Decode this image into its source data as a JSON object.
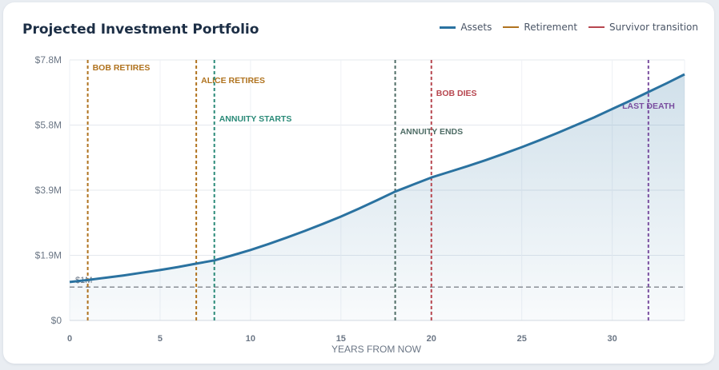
{
  "chart_data": {
    "type": "area",
    "title": "Projected Investment Portfolio",
    "xlabel": "YEARS FROM NOW",
    "ylabel": "",
    "xlim": [
      0,
      34
    ],
    "ylim": [
      0,
      7.8
    ],
    "x_ticks": [
      0,
      5,
      10,
      15,
      20,
      25,
      30
    ],
    "x_tick_labels": [
      "0",
      "5",
      "10",
      "15",
      "20",
      "25",
      "30"
    ],
    "y_ticks": [
      0,
      1.95,
      3.9,
      5.85,
      7.8
    ],
    "y_tick_labels": [
      "$0",
      "$1.9M",
      "$3.9M",
      "$5.8M",
      "$7.8M"
    ],
    "grid": true,
    "legend_position": "top-right",
    "legend": [
      {
        "label": "Assets",
        "color": "#2a72a0",
        "kind": "line"
      },
      {
        "label": "Retirement",
        "color": "#b0731f",
        "kind": "thin"
      },
      {
        "label": "Survivor transition",
        "color": "#b7464f",
        "kind": "thin"
      }
    ],
    "series": [
      {
        "name": "Assets",
        "color": "#2a72a0",
        "x": [
          0,
          1,
          2,
          3,
          4,
          5,
          6,
          7,
          8,
          9,
          10,
          11,
          12,
          13,
          14,
          15,
          16,
          17,
          18,
          19,
          20,
          21,
          22,
          23,
          24,
          25,
          26,
          27,
          28,
          29,
          30,
          31,
          32,
          33,
          34
        ],
        "values": [
          1.15,
          1.21,
          1.28,
          1.35,
          1.43,
          1.51,
          1.6,
          1.7,
          1.8,
          1.95,
          2.11,
          2.29,
          2.48,
          2.68,
          2.89,
          3.11,
          3.35,
          3.6,
          3.86,
          4.07,
          4.28,
          4.45,
          4.62,
          4.8,
          4.99,
          5.19,
          5.4,
          5.62,
          5.85,
          6.08,
          6.33,
          6.58,
          6.84,
          7.1,
          7.37
        ]
      }
    ],
    "reference_line": {
      "y": 1.0,
      "label": "$1M",
      "color": "#8a8f96"
    },
    "events": [
      {
        "x": 1,
        "label": "BOB RETIRES",
        "color": "#b0731f"
      },
      {
        "x": 7,
        "label": "ALICE RETIRES",
        "color": "#b0731f"
      },
      {
        "x": 8,
        "label": "ANNUITY STARTS",
        "color": "#2a8a78"
      },
      {
        "x": 18,
        "label": "ANNUITY ENDS",
        "color": "#4f6d66"
      },
      {
        "x": 20,
        "label": "BOB DIES",
        "color": "#b7464f"
      },
      {
        "x": 32,
        "label": "LAST DEATH",
        "color": "#7a4fa0"
      }
    ]
  }
}
